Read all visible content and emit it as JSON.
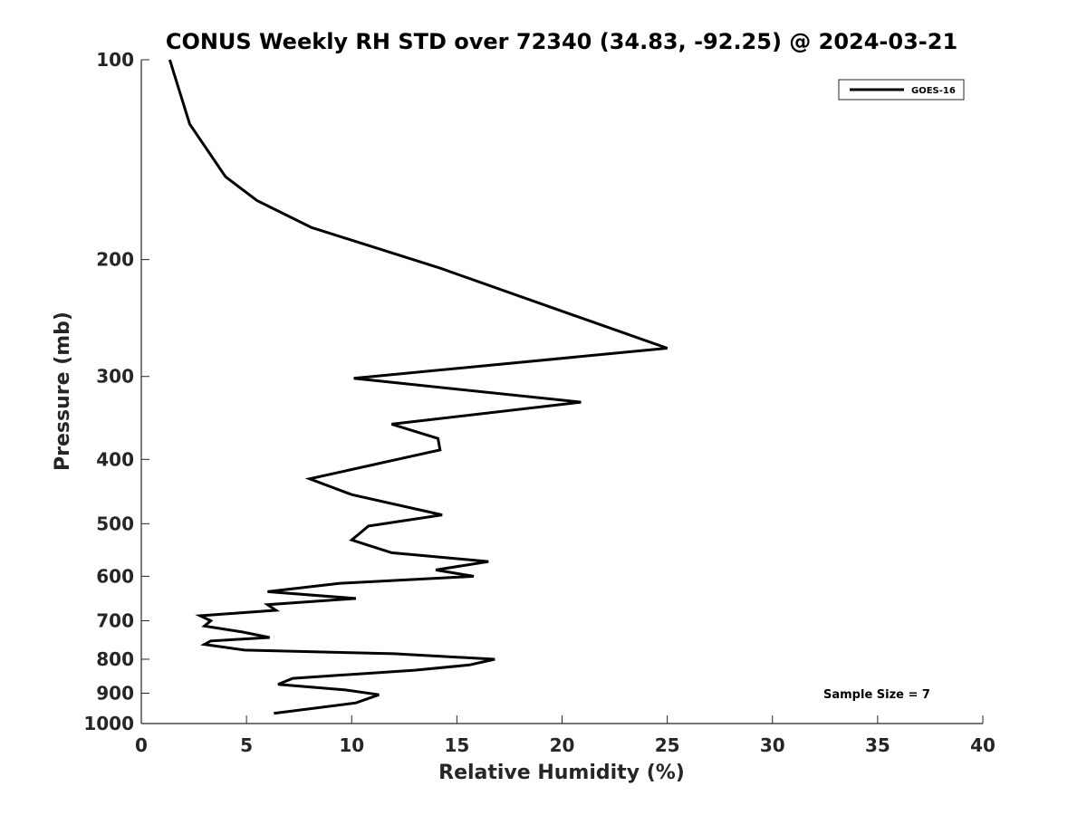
{
  "chart_data": {
    "type": "line",
    "title": "CONUS Weekly RH STD over 72340 (34.83, -92.25) @ 2024-03-21",
    "xlabel": "Relative Humidity (%)",
    "ylabel": "Pressure (mb)",
    "xlim": [
      0,
      40
    ],
    "ylim": [
      1000,
      100
    ],
    "y_scale": "log",
    "y_reversed": true,
    "grid": false,
    "legend_position": "top-right",
    "x_ticks": [
      0,
      5,
      10,
      15,
      20,
      25,
      30,
      35,
      40
    ],
    "x_tick_labels": [
      "0",
      "5",
      "10",
      "15",
      "20",
      "25",
      "30",
      "35",
      "40"
    ],
    "y_ticks": [
      100,
      200,
      300,
      400,
      500,
      600,
      700,
      800,
      900,
      1000
    ],
    "y_tick_labels": [
      "100",
      "200",
      "300",
      "400",
      "500",
      "600",
      "700",
      "800",
      "900",
      "1000"
    ],
    "annotation": "Sample Size = 7",
    "series": [
      {
        "name": "GOES-16",
        "color": "#000000",
        "points": [
          [
            1.35,
            100
          ],
          [
            2.3,
            125
          ],
          [
            4.0,
            150
          ],
          [
            5.5,
            163
          ],
          [
            8.1,
            179
          ],
          [
            14.2,
            206
          ],
          [
            21.4,
            248
          ],
          [
            25.0,
            272
          ],
          [
            10.1,
            302
          ],
          [
            20.9,
            328
          ],
          [
            11.9,
            354
          ],
          [
            14.1,
            372
          ],
          [
            14.2,
            387
          ],
          [
            8.0,
            428
          ],
          [
            10.0,
            452
          ],
          [
            14.3,
            485
          ],
          [
            10.8,
            504
          ],
          [
            10.0,
            529
          ],
          [
            11.9,
            553
          ],
          [
            16.5,
            570
          ],
          [
            14.0,
            587
          ],
          [
            15.8,
            600
          ],
          [
            9.4,
            615
          ],
          [
            6.0,
            633
          ],
          [
            10.2,
            648
          ],
          [
            6.0,
            662
          ],
          [
            6.4,
            675
          ],
          [
            2.8,
            688
          ],
          [
            3.3,
            700
          ],
          [
            3.0,
            713
          ],
          [
            4.8,
            728
          ],
          [
            6.1,
            742
          ],
          [
            3.3,
            751
          ],
          [
            3.0,
            760
          ],
          [
            4.9,
            775
          ],
          [
            12.0,
            785
          ],
          [
            16.8,
            800
          ],
          [
            15.6,
            816
          ],
          [
            13.0,
            831
          ],
          [
            7.2,
            855
          ],
          [
            6.5,
            873
          ],
          [
            9.7,
            890
          ],
          [
            11.3,
            905
          ],
          [
            10.2,
            931
          ],
          [
            6.3,
            965
          ]
        ]
      }
    ]
  }
}
